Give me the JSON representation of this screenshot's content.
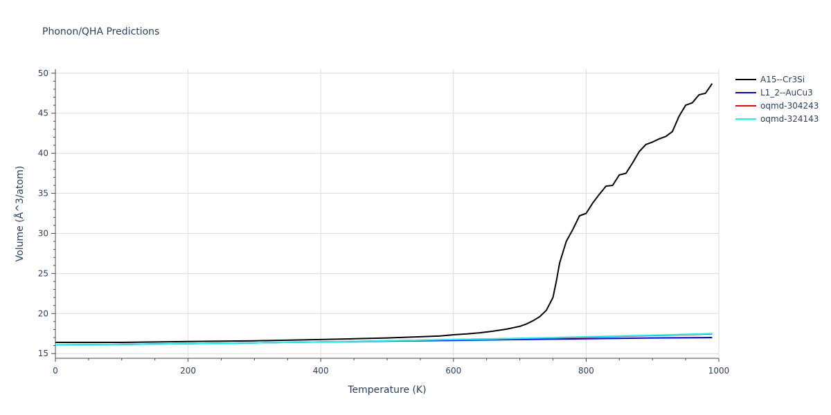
{
  "chart_data": {
    "type": "line",
    "title": "Phonon/QHA Predictions",
    "xlabel": "Temperature (K)",
    "ylabel": "Volume (Å^3/atom)",
    "xlim": [
      0,
      1000
    ],
    "ylim": [
      14.5,
      50.5
    ],
    "xticks": [
      0,
      200,
      400,
      600,
      800,
      1000
    ],
    "yticks": [
      15,
      20,
      25,
      30,
      35,
      40,
      45,
      50
    ],
    "grid": true,
    "legend": "top-right",
    "series": [
      {
        "name": "A15--Cr3Si",
        "color": "#000000",
        "x": [
          0,
          100,
          200,
          300,
          400,
          450,
          500,
          550,
          580,
          600,
          620,
          640,
          660,
          680,
          700,
          710,
          720,
          730,
          740,
          750,
          755,
          760,
          770,
          780,
          790,
          800,
          810,
          820,
          830,
          840,
          850,
          860,
          870,
          880,
          890,
          900,
          910,
          920,
          930,
          940,
          950,
          960,
          970,
          980,
          990
        ],
        "y": [
          16.4,
          16.4,
          16.5,
          16.6,
          16.75,
          16.85,
          16.95,
          17.1,
          17.2,
          17.35,
          17.45,
          17.6,
          17.8,
          18.05,
          18.4,
          18.7,
          19.1,
          19.6,
          20.4,
          22.0,
          24.0,
          26.3,
          29.0,
          30.5,
          32.2,
          32.5,
          33.8,
          34.9,
          35.9,
          36.0,
          37.3,
          37.5,
          38.8,
          40.2,
          41.1,
          41.4,
          41.8,
          42.1,
          42.7,
          44.6,
          46.0,
          46.3,
          47.3,
          47.5,
          48.7
        ]
      },
      {
        "name": "L1_2--AuCu3",
        "color": "#0000ff",
        "x": [
          0,
          100,
          200,
          300,
          400,
          500,
          600,
          700,
          800,
          900,
          990
        ],
        "y": [
          16.1,
          16.15,
          16.25,
          16.35,
          16.45,
          16.55,
          16.65,
          16.75,
          16.85,
          16.95,
          17.0
        ]
      },
      {
        "name": "oqmd-304243",
        "color": "#ff0000",
        "x": [
          0,
          100,
          200,
          300,
          400,
          500,
          600,
          700,
          800,
          900,
          990
        ],
        "y": [
          16.1,
          16.15,
          16.25,
          16.35,
          16.45,
          16.6,
          16.75,
          16.9,
          17.05,
          17.25,
          17.45
        ]
      },
      {
        "name": "oqmd-324143",
        "color": "#00ffff",
        "x": [
          0,
          100,
          200,
          300,
          400,
          500,
          600,
          700,
          800,
          900,
          990
        ],
        "y": [
          16.1,
          16.15,
          16.25,
          16.35,
          16.45,
          16.6,
          16.75,
          16.9,
          17.1,
          17.3,
          17.5
        ]
      }
    ]
  }
}
